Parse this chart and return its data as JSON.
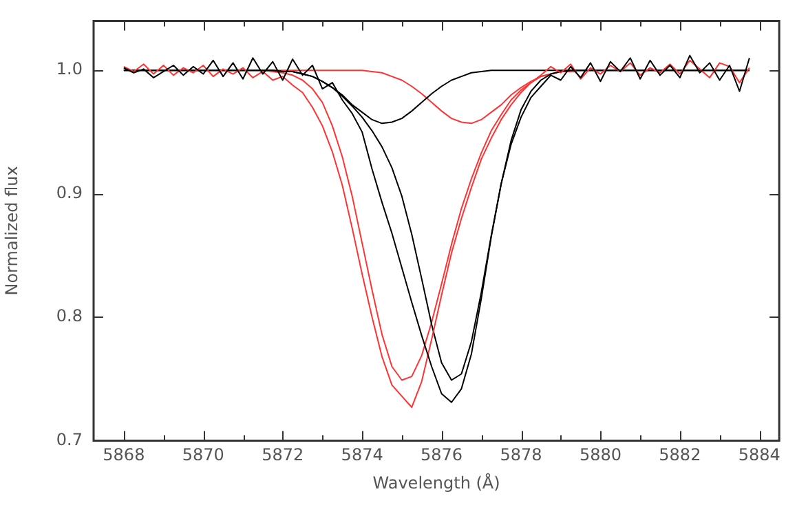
{
  "chart_data": {
    "type": "line",
    "xlabel": "Wavelength (Å)",
    "ylabel": "Normalized flux",
    "x": [
      5868,
      5868.25,
      5868.5,
      5868.75,
      5869,
      5869.25,
      5869.5,
      5869.75,
      5870,
      5870.25,
      5870.5,
      5870.75,
      5871,
      5871.25,
      5871.5,
      5871.75,
      5872,
      5872.25,
      5872.5,
      5872.75,
      5873,
      5873.25,
      5873.5,
      5873.75,
      5874,
      5874.25,
      5874.5,
      5874.75,
      5875,
      5875.25,
      5875.5,
      5875.75,
      5876,
      5876.25,
      5876.5,
      5876.75,
      5877,
      5877.25,
      5877.5,
      5877.75,
      5878,
      5878.25,
      5878.5,
      5878.75,
      5879,
      5879.25,
      5879.5,
      5879.75,
      5880,
      5880.25,
      5880.5,
      5880.75,
      5881,
      5881.25,
      5881.5,
      5881.75,
      5882,
      5882.25,
      5882.5,
      5882.75,
      5883,
      5883.25,
      5883.5,
      5883.75
    ],
    "series": [
      {
        "color": "#000000",
        "values": [
          1.002,
          0.998,
          1.001,
          0.994,
          0.999,
          1.004,
          0.996,
          1.003,
          0.997,
          1.008,
          0.995,
          1.006,
          0.993,
          1.01,
          0.997,
          1.007,
          0.992,
          1.009,
          0.996,
          1.004,
          0.985,
          0.99,
          0.976,
          0.965,
          0.95,
          0.92,
          0.893,
          0.868,
          0.84,
          0.812,
          0.785,
          0.76,
          0.738,
          0.731,
          0.742,
          0.77,
          0.815,
          0.865,
          0.908,
          0.94,
          0.962,
          0.978,
          0.987,
          0.996,
          0.992,
          1.003,
          0.994,
          1.006,
          0.991,
          1.007,
          0.999,
          1.01,
          0.993,
          1.008,
          0.996,
          1.004,
          0.994,
          1.012,
          0.998,
          1.006,
          0.992,
          1.004,
          0.983,
          1.01
        ]
      },
      {
        "color": "#ff3333",
        "values": [
          1.003,
          0.999,
          1.005,
          0.997,
          1.004,
          0.996,
          1.002,
          0.998,
          1.004,
          0.995,
          1.001,
          0.997,
          1.002,
          0.994,
          0.999,
          0.992,
          0.995,
          0.988,
          0.982,
          0.97,
          0.955,
          0.934,
          0.907,
          0.872,
          0.835,
          0.8,
          0.768,
          0.745,
          0.736,
          0.727,
          0.748,
          0.782,
          0.818,
          0.852,
          0.88,
          0.905,
          0.928,
          0.945,
          0.96,
          0.972,
          0.982,
          0.99,
          0.996,
          1.003,
          0.998,
          1.005,
          0.993,
          1.002,
          0.997,
          1.004,
          0.999,
          1.006,
          0.996,
          1.002,
          0.998,
          1.005,
          0.997,
          1.008,
          1.001,
          0.994,
          1.006,
          1.003,
          0.99,
          1.002
        ]
      },
      {
        "color": "#000000",
        "values": [
          1,
          1,
          1,
          1,
          1,
          1,
          1,
          1,
          1,
          1,
          1,
          1,
          1,
          1,
          1,
          1,
          0.999,
          0.999,
          0.997,
          0.995,
          0.991,
          0.986,
          0.979,
          0.971,
          0.962,
          0.951,
          0.938,
          0.921,
          0.898,
          0.867,
          0.831,
          0.794,
          0.763,
          0.749,
          0.754,
          0.78,
          0.82,
          0.866,
          0.908,
          0.943,
          0.968,
          0.983,
          0.992,
          0.997,
          0.999,
          1,
          1,
          1,
          1,
          1,
          1,
          1,
          1,
          1,
          1,
          1,
          1,
          1,
          1,
          1,
          1,
          1,
          1,
          1
        ]
      },
      {
        "color": "#ff3333",
        "values": [
          1,
          1,
          1,
          1,
          1,
          1,
          1,
          1,
          1,
          1,
          1,
          1,
          1,
          1,
          1,
          0.999,
          0.998,
          0.996,
          0.992,
          0.985,
          0.974,
          0.955,
          0.93,
          0.898,
          0.86,
          0.822,
          0.786,
          0.76,
          0.749,
          0.752,
          0.769,
          0.796,
          0.827,
          0.859,
          0.888,
          0.912,
          0.933,
          0.951,
          0.964,
          0.976,
          0.984,
          0.99,
          0.995,
          0.997,
          0.999,
          0.999,
          1,
          1,
          1,
          1,
          1,
          1,
          1,
          1,
          1,
          1,
          1,
          1,
          1,
          1,
          1,
          1,
          1,
          1
        ]
      },
      {
        "color": "#000000",
        "values": [
          1,
          1,
          1,
          1,
          1,
          1,
          1,
          1,
          1,
          1,
          1,
          1,
          1,
          1,
          1,
          1,
          0.999,
          0.999,
          0.997,
          0.995,
          0.991,
          0.986,
          0.98,
          0.972,
          0.966,
          0.96,
          0.957,
          0.958,
          0.961,
          0.967,
          0.974,
          0.981,
          0.987,
          0.992,
          0.995,
          0.998,
          0.999,
          1,
          1,
          1,
          1,
          1,
          1,
          1,
          1,
          1,
          1,
          1,
          1,
          1,
          1,
          1,
          1,
          1,
          1,
          1,
          1,
          1,
          1,
          1,
          1,
          1,
          1,
          1
        ]
      },
      {
        "color": "#ff3333",
        "values": [
          1,
          1,
          1,
          1,
          1,
          1,
          1,
          1,
          1,
          1,
          1,
          1,
          1,
          1,
          1,
          1,
          1,
          1,
          1,
          1,
          1,
          1,
          1,
          1,
          1,
          0.999,
          0.998,
          0.995,
          0.992,
          0.987,
          0.981,
          0.974,
          0.967,
          0.961,
          0.958,
          0.957,
          0.96,
          0.966,
          0.972,
          0.98,
          0.986,
          0.991,
          0.995,
          0.997,
          0.999,
          0.999,
          1,
          1,
          1,
          1,
          1,
          1,
          1,
          1,
          1,
          1,
          1,
          1,
          1,
          1,
          1,
          1,
          1,
          1
        ]
      }
    ],
    "xlim": [
      5867.24,
      5884.5
    ],
    "xticks": [
      5868,
      {
        "value": 5869,
        "label": null
      },
      5870,
      {
        "value": 5871,
        "label": null
      },
      5872,
      {
        "value": 5873,
        "label": null
      },
      5874,
      {
        "value": 5875,
        "label": null
      },
      5876,
      {
        "value": 5877,
        "label": null
      },
      5878,
      {
        "value": 5879,
        "label": null
      },
      5880,
      {
        "value": 5881,
        "label": null
      },
      5882,
      {
        "value": 5883,
        "label": null
      },
      5884
    ],
    "ylim": [
      0.7,
      1.04
    ],
    "yticks": [
      0.7,
      0.8,
      0.9,
      {
        "value": 1,
        "label": "1.0"
      }
    ],
    "grid": false,
    "legend": false
  }
}
